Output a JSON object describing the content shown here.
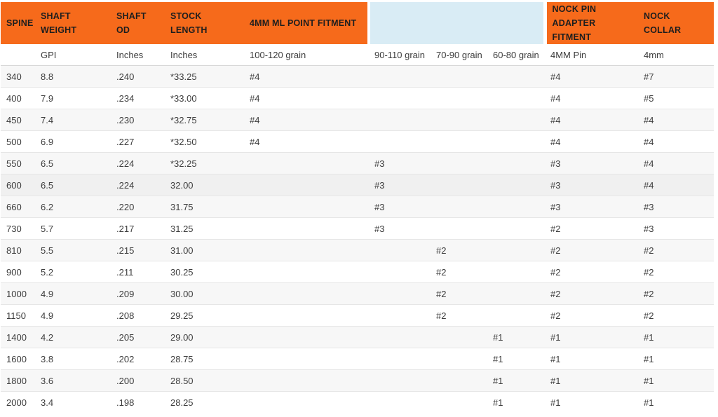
{
  "colors": {
    "header_orange": "#f66a1b",
    "header_light_blue": "#d9ecf5",
    "row_stripe": "#f7f7f7",
    "row_highlight": "#f0f0f0"
  },
  "table": {
    "columns": [
      {
        "id": "spine",
        "header": "SPINE",
        "subheader": "",
        "group": "orange-left"
      },
      {
        "id": "shaft-weight",
        "header": "SHAFT WEIGHT",
        "subheader": "GPI",
        "group": "orange-left"
      },
      {
        "id": "shaft-od",
        "header": "SHAFT OD",
        "subheader": "Inches",
        "group": "orange-left"
      },
      {
        "id": "stock-length",
        "header": "STOCK LENGTH",
        "subheader": "Inches",
        "group": "orange-left"
      },
      {
        "id": "point-fitment-100-120",
        "header": "4MM ML POINT FITMENT",
        "subheader": "100-120 grain",
        "group": "orange-left"
      },
      {
        "id": "point-fitment-90-110",
        "header": "",
        "subheader": "90-110 grain",
        "group": "blue"
      },
      {
        "id": "point-fitment-70-90",
        "header": "",
        "subheader": "70-90 grain",
        "group": "blue"
      },
      {
        "id": "point-fitment-60-80",
        "header": "",
        "subheader": "60-80 grain",
        "group": "blue"
      },
      {
        "id": "nock-pin-adapter",
        "header": "NOCK PIN ADAPTER FITMENT",
        "subheader": "4MM Pin",
        "group": "orange-right"
      },
      {
        "id": "nock-collar",
        "header": "NOCK COLLAR",
        "subheader": "4mm",
        "group": "orange-right"
      }
    ],
    "highlighted_spine": "600",
    "rows": [
      [
        "340",
        "8.8",
        ".240",
        "*33.25",
        "#4",
        "",
        "",
        "",
        "#4",
        "#7"
      ],
      [
        "400",
        "7.9",
        ".234",
        "*33.00",
        "#4",
        "",
        "",
        "",
        "#4",
        "#5"
      ],
      [
        "450",
        "7.4",
        ".230",
        "*32.75",
        "#4",
        "",
        "",
        "",
        "#4",
        "#4"
      ],
      [
        "500",
        "6.9",
        ".227",
        "*32.50",
        "#4",
        "",
        "",
        "",
        "#4",
        "#4"
      ],
      [
        "550",
        "6.5",
        ".224",
        "*32.25",
        "",
        "#3",
        "",
        "",
        "#3",
        "#4"
      ],
      [
        "600",
        "6.5",
        ".224",
        "32.00",
        "",
        "#3",
        "",
        "",
        "#3",
        "#4"
      ],
      [
        "660",
        "6.2",
        ".220",
        "31.75",
        "",
        "#3",
        "",
        "",
        "#3",
        "#3"
      ],
      [
        "730",
        "5.7",
        ".217",
        "31.25",
        "",
        "#3",
        "",
        "",
        "#2",
        "#3"
      ],
      [
        "810",
        "5.5",
        ".215",
        "31.00",
        "",
        "",
        "#2",
        "",
        "#2",
        "#2"
      ],
      [
        "900",
        "5.2",
        ".211",
        "30.25",
        "",
        "",
        "#2",
        "",
        "#2",
        "#2"
      ],
      [
        "1000",
        "4.9",
        ".209",
        "30.00",
        "",
        "",
        "#2",
        "",
        "#2",
        "#2"
      ],
      [
        "1150",
        "4.9",
        ".208",
        "29.25",
        "",
        "",
        "#2",
        "",
        "#2",
        "#2"
      ],
      [
        "1400",
        "4.2",
        ".205",
        "29.00",
        "",
        "",
        "",
        "#1",
        "#1",
        "#1"
      ],
      [
        "1600",
        "3.8",
        ".202",
        "28.75",
        "",
        "",
        "",
        "#1",
        "#1",
        "#1"
      ],
      [
        "1800",
        "3.6",
        ".200",
        "28.50",
        "",
        "",
        "",
        "#1",
        "#1",
        "#1"
      ],
      [
        "2000",
        "3.4",
        ".198",
        "28.25",
        "",
        "",
        "",
        "#1",
        "#1",
        "#1"
      ]
    ]
  }
}
